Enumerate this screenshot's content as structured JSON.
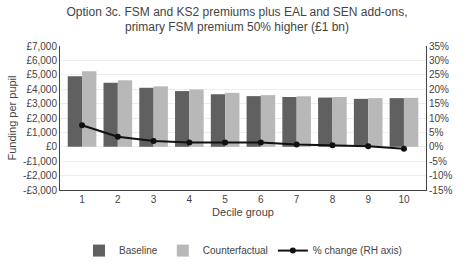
{
  "chart_data": {
    "type": "bar",
    "title": "Option 3c. FSM and KS2 premiums plus EAL and SEN add-ons,\nprimary FSM premium 50% higher (£1 bn)",
    "x_label": "Decile group",
    "y_label": "Funding per pupil",
    "categories": [
      "1",
      "2",
      "3",
      "4",
      "5",
      "6",
      "7",
      "8",
      "9",
      "10"
    ],
    "series": [
      {
        "name": "Baseline",
        "type": "bar",
        "color": "#606060",
        "values": [
          4900,
          4450,
          4100,
          3870,
          3650,
          3520,
          3460,
          3420,
          3330,
          3380
        ]
      },
      {
        "name": "Counterfactual",
        "type": "bar",
        "color": "#b8b8b8",
        "values": [
          5250,
          4620,
          4200,
          3980,
          3750,
          3590,
          3510,
          3460,
          3380,
          3400
        ]
      },
      {
        "name": "% change (RH axis)",
        "type": "line",
        "axis": "y2",
        "color": "#111111",
        "marker": "circle",
        "values": [
          7.5,
          3.5,
          2.0,
          1.5,
          1.5,
          1.5,
          0.8,
          0.5,
          0.2,
          -0.7
        ]
      }
    ],
    "ylim": [
      -3000,
      7000
    ],
    "yticks": [
      {
        "value": -3000,
        "label": "-£3,000"
      },
      {
        "value": -2000,
        "label": "-£2,000"
      },
      {
        "value": -1000,
        "label": "-£1,000"
      },
      {
        "value": 0,
        "label": "£0"
      },
      {
        "value": 1000,
        "label": "£1,000"
      },
      {
        "value": 2000,
        "label": "£2,000"
      },
      {
        "value": 3000,
        "label": "£3,000"
      },
      {
        "value": 4000,
        "label": "£4,000"
      },
      {
        "value": 5000,
        "label": "£5,000"
      },
      {
        "value": 6000,
        "label": "£6,000"
      },
      {
        "value": 7000,
        "label": "£7,000"
      }
    ],
    "y2lim": [
      -15,
      35
    ],
    "y2ticks": [
      {
        "value": -15,
        "label": "-15%"
      },
      {
        "value": -10,
        "label": "-10%"
      },
      {
        "value": -5,
        "label": "-5%"
      },
      {
        "value": 0,
        "label": "0%"
      },
      {
        "value": 5,
        "label": "5%"
      },
      {
        "value": 10,
        "label": "10%"
      },
      {
        "value": 15,
        "label": "15%"
      },
      {
        "value": 20,
        "label": "20%"
      },
      {
        "value": 25,
        "label": "25%"
      },
      {
        "value": 30,
        "label": "30%"
      },
      {
        "value": 35,
        "label": "35%"
      }
    ],
    "grid": true,
    "legend": "bottom"
  }
}
